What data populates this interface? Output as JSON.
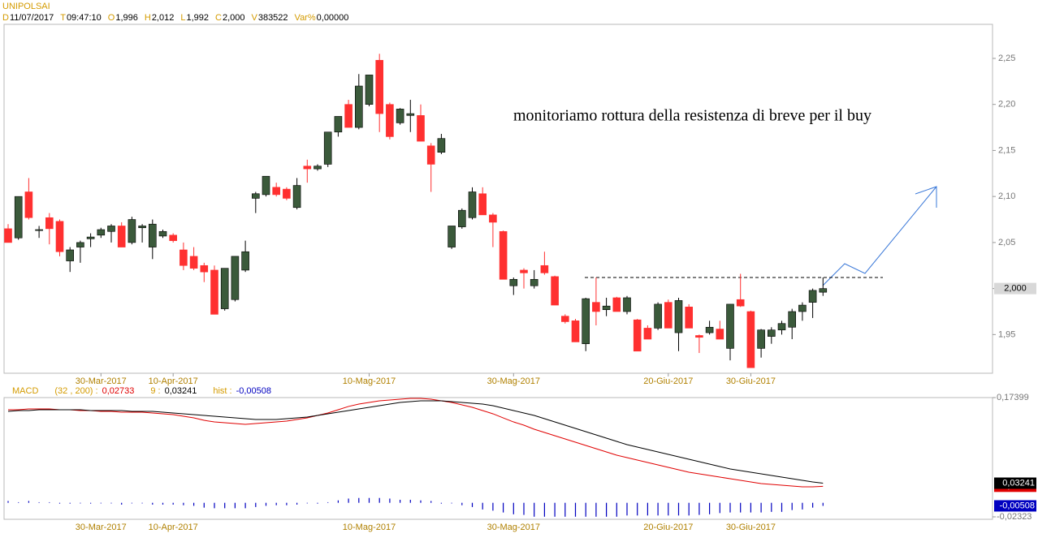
{
  "header": {
    "symbol": "UNIPOLSAI",
    "fields": [
      {
        "key": "D",
        "value": "11/07/2017"
      },
      {
        "key": "T",
        "value": "09:47:10"
      },
      {
        "key": "O",
        "value": "1,996"
      },
      {
        "key": "H",
        "value": "2,012"
      },
      {
        "key": "L",
        "value": "1,992"
      },
      {
        "key": "C",
        "value": "2,000"
      },
      {
        "key": "V",
        "value": "383522"
      },
      {
        "key": "Var%",
        "value": "0,00000"
      }
    ]
  },
  "chart_data": [
    {
      "type": "candlestick",
      "annotation": "monitoriamo rottura della resistenza di breve per il buy",
      "xticks": [
        {
          "value": 9,
          "label": "30-Mar-2017"
        },
        {
          "value": 16,
          "label": "10-Apr-2017"
        },
        {
          "value": 35,
          "label": "10-Mag-2017"
        },
        {
          "value": 49,
          "label": "30-Mag-2017"
        },
        {
          "value": 64,
          "label": "20-Giu-2017"
        },
        {
          "value": 72,
          "label": "30-Giu-2017"
        }
      ],
      "ylim": [
        1.908,
        2.287
      ],
      "yticks": [
        {
          "value": 1.95,
          "label": "1,95"
        },
        {
          "value": 2.0,
          "label": "2,00"
        },
        {
          "value": 2.05,
          "label": "2,05"
        },
        {
          "value": 2.1,
          "label": "2,10"
        },
        {
          "value": 2.15,
          "label": "2,15"
        },
        {
          "value": 2.2,
          "label": "2,20"
        },
        {
          "value": 2.25,
          "label": "2,25"
        }
      ],
      "last_price": {
        "value": 2.0,
        "label": "2,000"
      },
      "resistance": 2.012,
      "up_color": "#3b5a3b",
      "down_color": "#ff3030",
      "open": [
        2.065,
        2.055,
        2.105,
        2.063,
        2.077,
        2.073,
        2.03,
        2.045,
        2.054,
        2.058,
        2.062,
        2.068,
        2.05,
        2.066,
        2.045,
        2.057,
        2.058,
        2.042,
        2.035,
        2.025,
        2.02,
        1.978,
        1.988,
        2.02,
        2.098,
        2.102,
        2.11,
        2.108,
        2.088,
        2.133,
        2.13,
        2.135,
        2.17,
        2.2,
        2.175,
        2.2,
        2.248,
        2.2,
        2.18,
        2.188,
        2.188,
        2.155,
        2.148,
        2.045,
        2.067,
        2.077,
        2.103,
        2.08,
        2.062,
        2.003,
        2.02,
        2.003,
        2.025,
        2.013,
        1.97,
        1.965,
        1.94,
        1.985,
        1.977,
        1.99,
        1.975,
        1.966,
        1.957,
        1.957,
        1.985,
        1.952,
        1.98,
        1.949,
        1.952,
        1.956,
        1.935,
        1.988,
        1.975,
        1.935,
        1.948,
        1.955,
        1.958,
        1.975,
        1.985,
        1.996
      ],
      "high": [
        2.07,
        2.1,
        2.12,
        2.068,
        2.082,
        2.075,
        2.045,
        2.052,
        2.06,
        2.066,
        2.07,
        2.072,
        2.078,
        2.07,
        2.075,
        2.064,
        2.06,
        2.05,
        2.045,
        2.028,
        2.025,
        2.022,
        2.035,
        2.052,
        2.105,
        2.122,
        2.115,
        2.11,
        2.12,
        2.14,
        2.135,
        2.17,
        2.187,
        2.205,
        2.233,
        2.232,
        2.255,
        2.202,
        2.196,
        2.205,
        2.2,
        2.158,
        2.168,
        2.068,
        2.087,
        2.11,
        2.11,
        2.082,
        2.063,
        2.012,
        2.022,
        2.02,
        2.04,
        2.014,
        1.972,
        1.967,
        1.99,
        2.012,
        1.99,
        1.991,
        1.992,
        1.967,
        1.96,
        1.985,
        1.988,
        1.99,
        1.983,
        1.95,
        1.965,
        1.965,
        1.983,
        2.016,
        1.976,
        1.956,
        1.958,
        1.965,
        1.978,
        1.985,
        2.0,
        2.012
      ],
      "low": [
        2.05,
        2.053,
        2.075,
        2.055,
        2.048,
        2.035,
        2.018,
        2.028,
        2.045,
        2.055,
        2.05,
        2.045,
        2.048,
        2.05,
        2.032,
        2.055,
        2.05,
        2.02,
        2.02,
        2.007,
        1.972,
        1.976,
        1.986,
        2.018,
        2.082,
        2.1,
        2.1,
        2.096,
        2.086,
        2.115,
        2.128,
        2.132,
        2.165,
        2.175,
        2.173,
        2.198,
        2.17,
        2.162,
        2.178,
        2.17,
        2.16,
        2.105,
        2.146,
        2.043,
        2.065,
        2.075,
        2.08,
        2.045,
        2.01,
        1.993,
        2.0,
        2.0,
        2.015,
        1.982,
        1.962,
        1.942,
        1.932,
        1.96,
        1.97,
        1.975,
        1.972,
        1.932,
        1.945,
        1.955,
        1.957,
        1.932,
        1.957,
        1.93,
        1.95,
        1.945,
        1.922,
        1.98,
        1.914,
        1.925,
        1.94,
        1.95,
        1.945,
        1.965,
        1.968,
        1.992
      ],
      "close": [
        2.05,
        2.1,
        2.077,
        2.064,
        2.065,
        2.04,
        2.042,
        2.05,
        2.056,
        2.064,
        2.068,
        2.045,
        2.075,
        2.068,
        2.07,
        2.062,
        2.052,
        2.025,
        2.022,
        2.018,
        1.972,
        2.022,
        2.035,
        2.04,
        2.103,
        2.122,
        2.102,
        2.098,
        2.112,
        2.13,
        2.133,
        2.17,
        2.187,
        2.175,
        2.22,
        2.232,
        2.19,
        2.165,
        2.195,
        2.19,
        2.16,
        2.135,
        2.163,
        2.068,
        2.085,
        2.105,
        2.08,
        2.072,
        2.01,
        2.01,
        2.017,
        2.01,
        2.017,
        1.982,
        1.964,
        1.942,
        1.989,
        1.975,
        1.981,
        1.975,
        1.99,
        1.932,
        1.945,
        1.983,
        1.957,
        1.987,
        1.957,
        1.947,
        1.958,
        1.945,
        1.983,
        1.981,
        1.914,
        1.955,
        1.955,
        1.962,
        1.975,
        1.982,
        1.998,
        2.0
      ]
    },
    {
      "type": "macd",
      "title": "MACD",
      "ylim": [
        -0.02323,
        0.17399
      ],
      "yticks": [
        {
          "value": 0.17399,
          "label": "0,17399"
        },
        {
          "value": -0.02323,
          "label": "-0,02323"
        }
      ],
      "series": [
        {
          "name": "(32 , 200) :",
          "color": "#e00000",
          "value_labels": "0,02733",
          "values": [
            0.1539,
            0.1539,
            0.1552,
            0.1552,
            0.1552,
            0.1539,
            0.1539,
            0.1525,
            0.1525,
            0.1512,
            0.1512,
            0.1498,
            0.1498,
            0.1498,
            0.1485,
            0.1472,
            0.1458,
            0.1431,
            0.1404,
            0.1364,
            0.1337,
            0.1324,
            0.1311,
            0.1297,
            0.1311,
            0.1324,
            0.1337,
            0.1351,
            0.1378,
            0.1404,
            0.1445,
            0.1485,
            0.1539,
            0.1593,
            0.1633,
            0.1659,
            0.1686,
            0.17,
            0.1713,
            0.1726,
            0.1726,
            0.1713,
            0.1686,
            0.1659,
            0.1619,
            0.1579,
            0.1525,
            0.1472,
            0.1404,
            0.1337,
            0.1284,
            0.1217,
            0.1163,
            0.1109,
            0.1056,
            0.1002,
            0.0948,
            0.0895,
            0.0841,
            0.0787,
            0.0747,
            0.0707,
            0.0667,
            0.0626,
            0.0586,
            0.0546,
            0.0506,
            0.0479,
            0.0452,
            0.0425,
            0.0398,
            0.0372,
            0.0345,
            0.0318,
            0.0304,
            0.0291,
            0.0277,
            0.0264,
            0.0264,
            0.02733
          ]
        },
        {
          "name": "9 :",
          "color": "#000000",
          "value_labels": "0,03241",
          "values": [
            0.1512,
            0.1525,
            0.1525,
            0.1539,
            0.1539,
            0.1539,
            0.1539,
            0.1539,
            0.1525,
            0.1525,
            0.1525,
            0.1525,
            0.1512,
            0.1512,
            0.1512,
            0.1498,
            0.1485,
            0.1472,
            0.1458,
            0.1445,
            0.1431,
            0.1418,
            0.1404,
            0.1391,
            0.1378,
            0.1378,
            0.1378,
            0.1391,
            0.1404,
            0.1418,
            0.1445,
            0.1472,
            0.1498,
            0.1525,
            0.1552,
            0.1579,
            0.1606,
            0.1633,
            0.1659,
            0.1673,
            0.1686,
            0.1686,
            0.1686,
            0.1673,
            0.1659,
            0.1646,
            0.1633,
            0.1606,
            0.1566,
            0.1525,
            0.1485,
            0.1445,
            0.1391,
            0.1337,
            0.1284,
            0.123,
            0.1176,
            0.1123,
            0.1069,
            0.1015,
            0.0962,
            0.0921,
            0.0881,
            0.0841,
            0.0801,
            0.0761,
            0.072,
            0.068,
            0.064,
            0.06,
            0.0559,
            0.0533,
            0.0506,
            0.0479,
            0.0452,
            0.0425,
            0.0398,
            0.0372,
            0.0345,
            0.03241
          ]
        },
        {
          "name": "hist :",
          "color": "#0000c0",
          "value_labels": "-0,00508",
          "values": [
            0.003,
            0.001,
            0.003,
            0.001,
            0.001,
            0,
            0,
            -0.001,
            0,
            -0.001,
            -0.001,
            -0.003,
            -0.001,
            -0.001,
            -0.003,
            -0.003,
            -0.003,
            -0.004,
            -0.005,
            -0.008,
            -0.009,
            -0.009,
            -0.009,
            -0.009,
            -0.007,
            -0.005,
            -0.004,
            -0.004,
            -0.003,
            -0.001,
            0,
            0.001,
            0.004,
            0.007,
            0.008,
            0.008,
            0.008,
            0.007,
            0.005,
            0.005,
            0.004,
            0.003,
            0,
            -0.001,
            -0.004,
            -0.007,
            -0.011,
            -0.013,
            -0.016,
            -0.019,
            -0.02,
            -0.023,
            -0.023,
            -0.023,
            -0.023,
            -0.023,
            -0.023,
            -0.023,
            -0.023,
            -0.023,
            -0.021,
            -0.021,
            -0.021,
            -0.021,
            -0.021,
            -0.021,
            -0.021,
            -0.02,
            -0.019,
            -0.017,
            -0.016,
            -0.016,
            -0.016,
            -0.016,
            -0.015,
            -0.015,
            -0.012,
            -0.011,
            -0.008,
            -0.00508
          ]
        }
      ]
    }
  ]
}
